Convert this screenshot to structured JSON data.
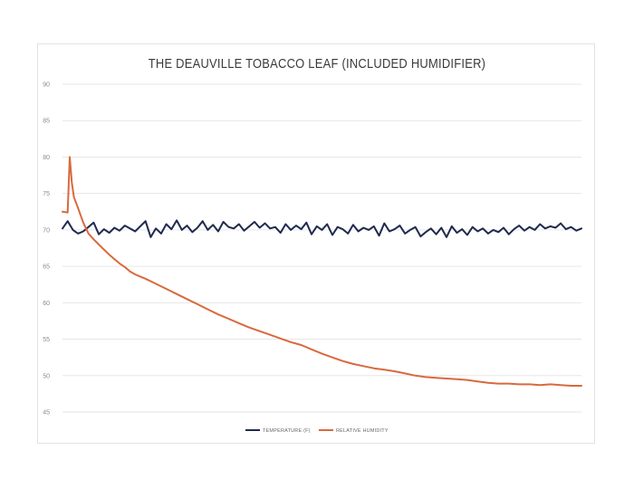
{
  "chart_data": {
    "type": "line",
    "title": "THE DEAUVILLE TOBACCO LEAF (INCLUDED HUMIDIFIER)",
    "xlabel": "",
    "ylabel": "",
    "ylim": [
      45,
      90
    ],
    "yticks": [
      45,
      50,
      55,
      60,
      65,
      70,
      75,
      80,
      85,
      90
    ],
    "grid": true,
    "legend_position": "bottom",
    "x_range": [
      0,
      100
    ],
    "series": [
      {
        "name": "TEMPERATURE (F)",
        "color": "#1f2a4e",
        "x": [
          0,
          1,
          2,
          3,
          4,
          5,
          6,
          7,
          8,
          9,
          10,
          11,
          12,
          13,
          14,
          15,
          16,
          17,
          18,
          19,
          20,
          21,
          22,
          23,
          24,
          25,
          26,
          27,
          28,
          29,
          30,
          31,
          32,
          33,
          34,
          35,
          36,
          37,
          38,
          39,
          40,
          41,
          42,
          43,
          44,
          45,
          46,
          47,
          48,
          49,
          50,
          51,
          52,
          53,
          54,
          55,
          56,
          57,
          58,
          59,
          60,
          61,
          62,
          63,
          64,
          65,
          66,
          67,
          68,
          69,
          70,
          71,
          72,
          73,
          74,
          75,
          76,
          77,
          78,
          79,
          80,
          81,
          82,
          83,
          84,
          85,
          86,
          87,
          88,
          89,
          90,
          91,
          92,
          93,
          94,
          95,
          96,
          97,
          98,
          99,
          100
        ],
        "values": [
          70.2,
          71.2,
          70.0,
          69.5,
          69.8,
          70.4,
          71.0,
          69.4,
          70.1,
          69.6,
          70.3,
          69.9,
          70.6,
          70.2,
          69.8,
          70.5,
          71.2,
          69.0,
          70.2,
          69.5,
          70.8,
          70.1,
          71.3,
          70.0,
          70.6,
          69.7,
          70.3,
          71.2,
          70.0,
          70.7,
          69.8,
          71.1,
          70.4,
          70.2,
          70.8,
          69.9,
          70.5,
          71.1,
          70.3,
          70.9,
          70.2,
          70.4,
          69.6,
          70.8,
          70.0,
          70.6,
          70.1,
          71.0,
          69.4,
          70.5,
          70.0,
          70.8,
          69.3,
          70.4,
          70.1,
          69.5,
          70.7,
          69.8,
          70.3,
          70.0,
          70.5,
          69.2,
          70.9,
          69.8,
          70.1,
          70.6,
          69.5,
          70.0,
          70.4,
          69.1,
          69.7,
          70.2,
          69.4,
          70.3,
          69.0,
          70.5,
          69.6,
          70.1,
          69.3,
          70.4,
          69.8,
          70.2,
          69.5,
          70.0,
          69.7,
          70.3,
          69.4,
          70.1,
          70.6,
          69.9,
          70.4,
          70.0,
          70.8,
          70.2,
          70.5,
          70.3,
          70.9,
          70.1,
          70.4,
          69.9,
          70.2
        ]
      },
      {
        "name": "RELATIVE HUMIDITY",
        "color": "#d9693e",
        "x": [
          0,
          1,
          1.4,
          1.8,
          2.2,
          3,
          4,
          5,
          6,
          7,
          8,
          9,
          10,
          11,
          12,
          13,
          14,
          15,
          16,
          18,
          20,
          22,
          24,
          26,
          28,
          30,
          32,
          34,
          36,
          38,
          40,
          42,
          44,
          46,
          48,
          50,
          52,
          54,
          56,
          58,
          60,
          62,
          64,
          66,
          68,
          70,
          72,
          74,
          76,
          78,
          80,
          82,
          84,
          86,
          88,
          90,
          92,
          94,
          96,
          98,
          100
        ],
        "values": [
          72.5,
          72.4,
          80.0,
          76.5,
          74.5,
          73.0,
          71.0,
          69.5,
          68.7,
          68.0,
          67.3,
          66.6,
          66.0,
          65.4,
          64.9,
          64.3,
          63.9,
          63.6,
          63.3,
          62.6,
          61.9,
          61.2,
          60.5,
          59.8,
          59.1,
          58.4,
          57.8,
          57.2,
          56.6,
          56.1,
          55.6,
          55.1,
          54.6,
          54.2,
          53.6,
          53.0,
          52.5,
          52.0,
          51.6,
          51.3,
          51.0,
          50.8,
          50.6,
          50.3,
          50.0,
          49.8,
          49.7,
          49.6,
          49.5,
          49.4,
          49.2,
          49.0,
          48.9,
          48.9,
          48.8,
          48.8,
          48.7,
          48.8,
          48.7,
          48.6,
          48.6
        ]
      }
    ]
  }
}
